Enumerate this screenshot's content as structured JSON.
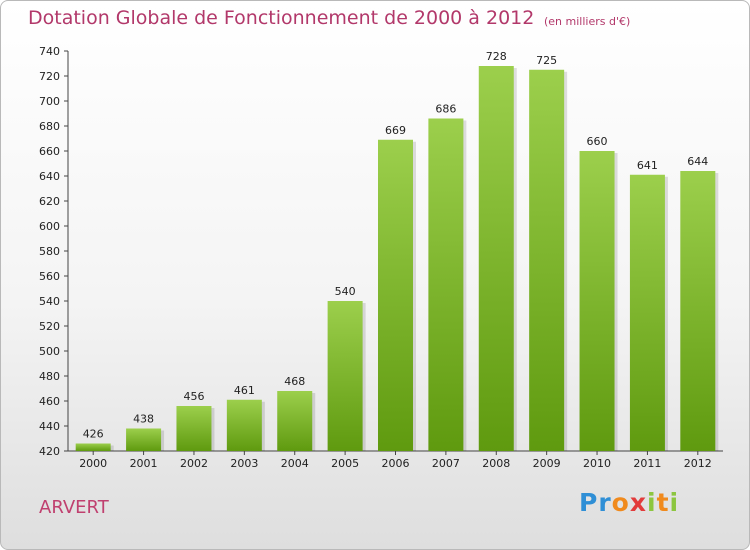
{
  "header": {
    "title": "Dotation Globale de Fonctionnement de 2000 à 2012",
    "unit_note": "(en milliers d'€)"
  },
  "footer": {
    "place": "ARVERT",
    "logo_text": "Proxiti"
  },
  "colors": {
    "title": "#b2386a",
    "bar_top": "#9ccf4c",
    "bar_bottom": "#5f9a0f",
    "axis": "#444444"
  },
  "chart_data": {
    "type": "bar",
    "title": "Dotation Globale de Fonctionnement de 2000 à 2012",
    "xlabel": "",
    "ylabel": "",
    "categories": [
      "2000",
      "2001",
      "2002",
      "2003",
      "2004",
      "2005",
      "2006",
      "2007",
      "2008",
      "2009",
      "2010",
      "2011",
      "2012"
    ],
    "values": [
      426,
      438,
      456,
      461,
      468,
      540,
      669,
      686,
      728,
      725,
      660,
      641,
      644
    ],
    "ylim": [
      420,
      740
    ],
    "yticks": [
      420,
      440,
      460,
      480,
      500,
      520,
      540,
      560,
      580,
      600,
      620,
      640,
      660,
      680,
      700,
      720,
      740
    ],
    "grid": false,
    "legend": "none"
  }
}
